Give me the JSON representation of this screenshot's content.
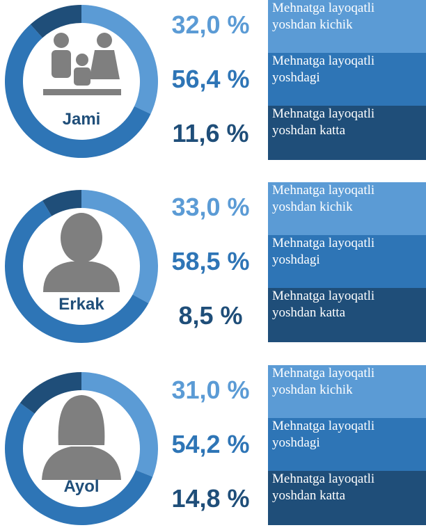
{
  "chart_data": [
    {
      "type": "donut",
      "center_label": "Jami",
      "categories": [
        "Mehnatga layoqatli yoshdan kichik",
        "Mehnatga layoqatli yoshdagi",
        "Mehnatga layoqatli yoshdan katta"
      ],
      "values": [
        32.0,
        56.4,
        11.6
      ],
      "value_labels": [
        "32,0 %",
        "56,4 %",
        "11,6 %"
      ],
      "colors": [
        "#5b9bd5",
        "#2e75b6",
        "#1f4e79"
      ]
    },
    {
      "type": "donut",
      "center_label": "Erkak",
      "categories": [
        "Mehnatga layoqatli yoshdan kichik",
        "Mehnatga layoqatli yoshdagi",
        "Mehnatga layoqatli yoshdan katta"
      ],
      "values": [
        33.0,
        58.5,
        8.5
      ],
      "value_labels": [
        "33,0 %",
        "58,5 %",
        "8,5 %"
      ],
      "colors": [
        "#5b9bd5",
        "#2e75b6",
        "#1f4e79"
      ]
    },
    {
      "type": "donut",
      "center_label": "Ayol",
      "categories": [
        "Mehnatga layoqatli yoshdan kichik",
        "Mehnatga layoqatli yoshdagi",
        "Mehnatga layoqatli yoshdan katta"
      ],
      "values": [
        31.0,
        54.2,
        14.8
      ],
      "value_labels": [
        "31,0 %",
        "54,2 %",
        "14,8 %"
      ],
      "colors": [
        "#5b9bd5",
        "#2e75b6",
        "#1f4e79"
      ]
    }
  ]
}
